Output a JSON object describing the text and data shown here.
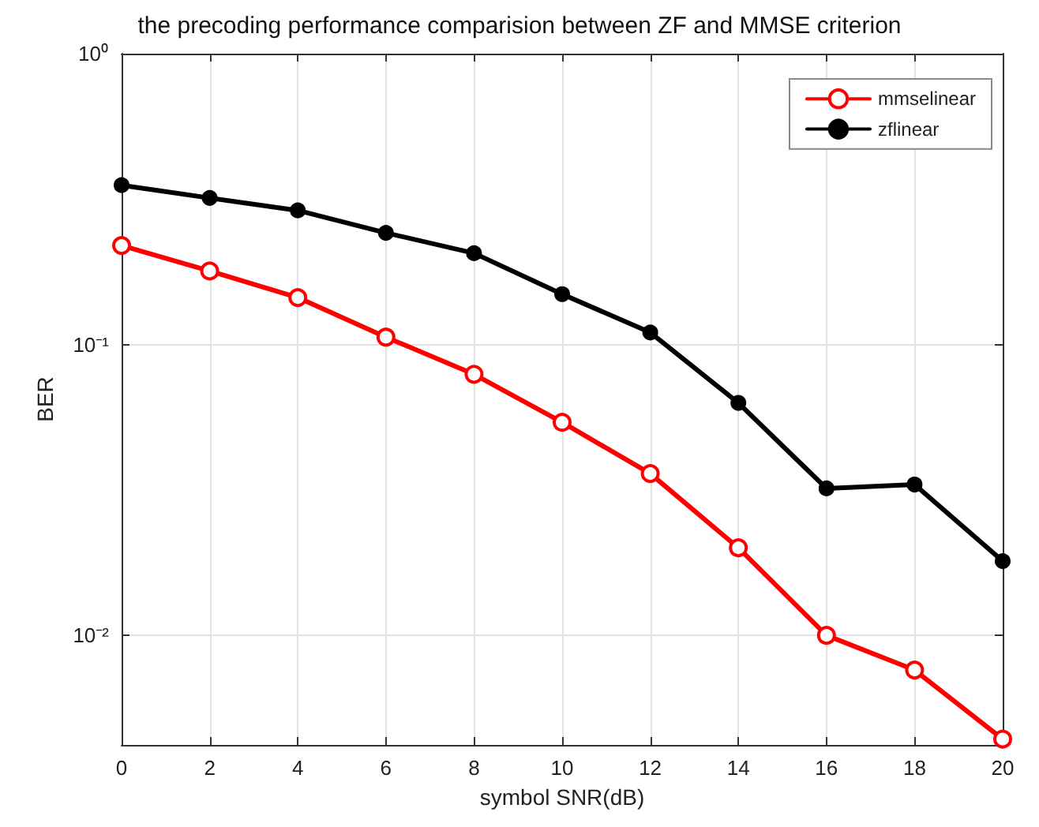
{
  "chart_data": {
    "type": "line",
    "title": "the precoding performance comparision between ZF and MMSE criterion",
    "xlabel": "symbol SNR(dB)",
    "ylabel": "BER",
    "x": [
      0,
      2,
      4,
      6,
      8,
      10,
      12,
      14,
      16,
      18,
      20
    ],
    "series": [
      {
        "name": "mmselinear",
        "color": "#ff0000",
        "values": [
          0.219,
          0.179,
          0.145,
          0.106,
          0.079,
          0.054,
          0.036,
          0.02,
          0.01,
          0.0076,
          0.0044
        ]
      },
      {
        "name": "zflinear",
        "color": "#000000",
        "values": [
          0.353,
          0.319,
          0.289,
          0.242,
          0.206,
          0.149,
          0.11,
          0.063,
          0.032,
          0.033,
          0.018
        ]
      }
    ],
    "xlim": [
      0,
      20
    ],
    "xticks": [
      0,
      2,
      4,
      6,
      8,
      10,
      12,
      14,
      16,
      18,
      20
    ],
    "ylim": [
      0.0042,
      1
    ],
    "yticks": [
      {
        "value": 0.01,
        "label": "10⁻²"
      },
      {
        "value": 0.1,
        "label": "10⁻¹"
      },
      {
        "value": 1,
        "label": "10⁰"
      }
    ],
    "log": "y",
    "grid": true,
    "legend": "top right",
    "marker": "circle",
    "line_style": "solid"
  }
}
